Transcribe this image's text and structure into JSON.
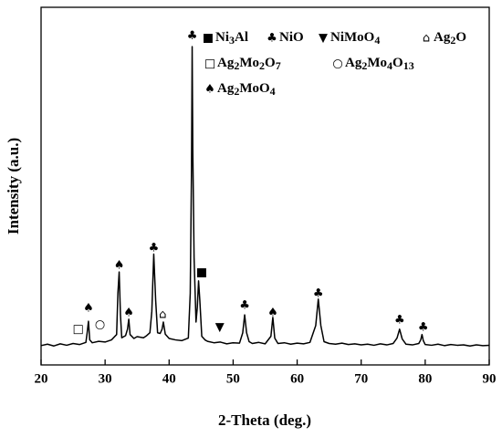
{
  "chart_data": {
    "type": "line",
    "x_label": "2-Theta (deg.)",
    "y_label": "Intensity (a.u.)",
    "xlim": [
      20,
      90
    ],
    "xticks": [
      20,
      30,
      40,
      50,
      60,
      70,
      80,
      90
    ],
    "ylim": [
      0,
      100
    ],
    "series": [
      {
        "color": "#000000",
        "x": [
          20,
          21,
          22,
          23,
          24,
          25,
          26,
          27,
          27.2,
          27.4,
          27.6,
          28,
          29,
          30,
          31,
          31.8,
          32.0,
          32.2,
          32.4,
          32.6,
          33.2,
          33.5,
          33.7,
          33.9,
          34.5,
          35,
          36,
          36.5,
          37,
          37.3,
          37.6,
          37.9,
          38.2,
          38.6,
          38.9,
          39.1,
          39.4,
          40,
          41,
          42,
          43,
          43.3,
          43.5,
          43.6,
          43.7,
          43.9,
          44.2,
          44.4,
          44.6,
          44.8,
          45.1,
          45.6,
          46,
          47,
          48,
          49,
          50,
          51,
          51.5,
          51.8,
          52.1,
          52.5,
          53,
          54,
          55,
          55.9,
          56.2,
          56.5,
          57,
          58,
          59,
          60,
          61,
          62,
          62.9,
          63.3,
          63.7,
          64.2,
          65,
          66,
          67,
          68,
          69,
          70,
          71,
          72,
          73,
          74,
          75,
          75.6,
          76,
          76.4,
          77,
          78,
          79,
          79.3,
          79.5,
          79.7,
          80,
          81,
          82,
          83,
          84,
          85,
          86,
          87,
          88,
          89,
          90
        ],
        "values": [
          5.4,
          5.8,
          5.3,
          5.9,
          5.5,
          6.0,
          5.7,
          6.3,
          9,
          12.2,
          7,
          6.2,
          6.6,
          6.4,
          7.0,
          8.5,
          20,
          26,
          14,
          7.6,
          8.2,
          10,
          12.8,
          8.5,
          7.4,
          7.9,
          7.6,
          8.2,
          9,
          15,
          31,
          18,
          9,
          8.8,
          10,
          12,
          8.6,
          7.4,
          7.0,
          6.8,
          7.5,
          20,
          55,
          89,
          60,
          30,
          12,
          16,
          23.5,
          18,
          8,
          7,
          6.6,
          6.2,
          6.4,
          5.9,
          6.2,
          6.1,
          9,
          14,
          9,
          6.5,
          6.0,
          6.3,
          5.9,
          8,
          13.3,
          7.5,
          6.0,
          6.2,
          5.8,
          6.1,
          5.9,
          6.3,
          11,
          18.4,
          11,
          6.5,
          6.0,
          5.8,
          6.1,
          5.7,
          5.9,
          5.6,
          5.8,
          5.5,
          5.9,
          5.6,
          6.0,
          7.5,
          10,
          7.3,
          5.8,
          5.6,
          6.0,
          7,
          8.5,
          6.8,
          5.7,
          5.5,
          5.8,
          5.4,
          5.7,
          5.5,
          5.6,
          5.3,
          5.6,
          5.4,
          5.5
        ]
      }
    ],
    "legend": [
      {
        "symbol": "■",
        "label": "Ni3Al"
      },
      {
        "symbol": "♣",
        "label": "NiO"
      },
      {
        "symbol": "▼",
        "label": "NiMoO4"
      },
      {
        "symbol": "⌂",
        "label": "Ag2O"
      },
      {
        "symbol": "□",
        "label": "Ag2Mo2O7"
      },
      {
        "symbol": "○",
        "label": "Ag2Mo4O13"
      },
      {
        "symbol": "♠",
        "label": "Ag2MoO4"
      }
    ],
    "annotations": [
      {
        "symbol": "□",
        "x": 25.8,
        "y": 10
      },
      {
        "symbol": "♠",
        "x": 27.4,
        "y": 15.8
      },
      {
        "symbol": "○",
        "x": 29.2,
        "y": 11.2
      },
      {
        "symbol": "♠",
        "x": 32.2,
        "y": 27.8
      },
      {
        "symbol": "♠",
        "x": 33.7,
        "y": 14.5
      },
      {
        "symbol": "♣",
        "x": 37.6,
        "y": 32.7
      },
      {
        "symbol": "⌂",
        "x": 39,
        "y": 14
      },
      {
        "symbol": "♣",
        "x": 43.6,
        "y": 92
      },
      {
        "symbol": "■",
        "x": 45.1,
        "y": 25.8
      },
      {
        "symbol": "▼",
        "x": 47.9,
        "y": 10.5
      },
      {
        "symbol": "♣",
        "x": 51.8,
        "y": 16.6
      },
      {
        "symbol": "♠",
        "x": 56.2,
        "y": 14.5
      },
      {
        "symbol": "♣",
        "x": 63.3,
        "y": 19.9
      },
      {
        "symbol": "♣",
        "x": 76,
        "y": 12.5
      },
      {
        "symbol": "♣",
        "x": 79.7,
        "y": 10.5
      }
    ]
  }
}
